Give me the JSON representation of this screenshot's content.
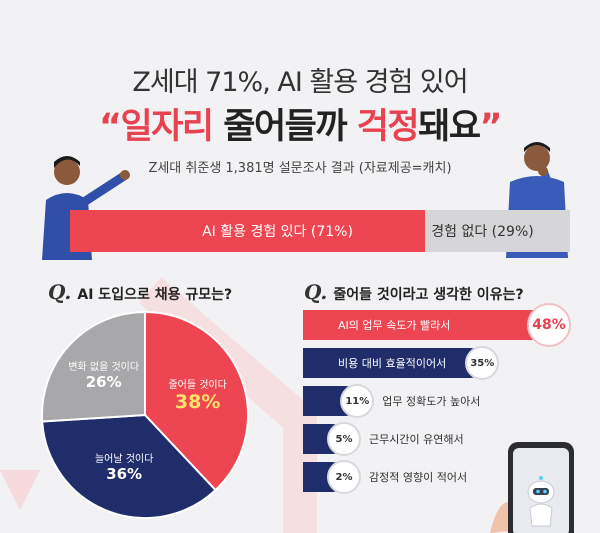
{
  "header": {
    "title_line1": "Z세대 71%, AI 활용 경험 있어",
    "title_line2_open_quote": "“",
    "title_line2_red1": "일자리",
    "title_line2_mid": " 줄어들까 ",
    "title_line2_red2": "걱정",
    "title_line2_end": "돼요",
    "title_line2_close_quote": "”",
    "subtitle": "Z세대 취준생 1,381명 설문조사 결과 (자료제공=캐치)"
  },
  "split_bar": {
    "yes_label": "AI 활용 경험 있다 (71%)",
    "no_label": "경험 없다 (29%)",
    "yes_value": 71,
    "no_value": 29
  },
  "q1": {
    "q": "Q.",
    "text": "AI 도입으로 채용 규모는?"
  },
  "q2": {
    "q": "Q.",
    "text": "줄어들 것이라고 생각한 이유는?"
  },
  "chart_data": [
    {
      "type": "pie",
      "title": "AI 도입으로 채용 규모는?",
      "slices": [
        {
          "label": "줄어들 것이다",
          "value": 38,
          "value_text": "38%",
          "color": "#ee4553"
        },
        {
          "label": "늘어날 것이다",
          "value": 36,
          "value_text": "36%",
          "color": "#1f2d6b"
        },
        {
          "label": "변화 없을 것이다",
          "value": 26,
          "value_text": "26%",
          "color": "#a8a8aa"
        }
      ]
    },
    {
      "type": "bar",
      "title": "줄어들 것이라고 생각한 이유는?",
      "categories": [
        "AI의 업무 속도가 빨라서",
        "비용 대비 효율적이어서",
        "업무 정확도가 높아서",
        "근무시간이 유연해서",
        "감정적 영향이 적어서"
      ],
      "values": [
        48,
        35,
        11,
        5,
        2
      ],
      "value_texts": [
        "48%",
        "35%",
        "11%",
        "5%",
        "2%"
      ],
      "colors": [
        "#ee4553",
        "#1f2d6b",
        "#1f2d6b",
        "#1f2d6b",
        "#1f2d6b"
      ]
    }
  ]
}
